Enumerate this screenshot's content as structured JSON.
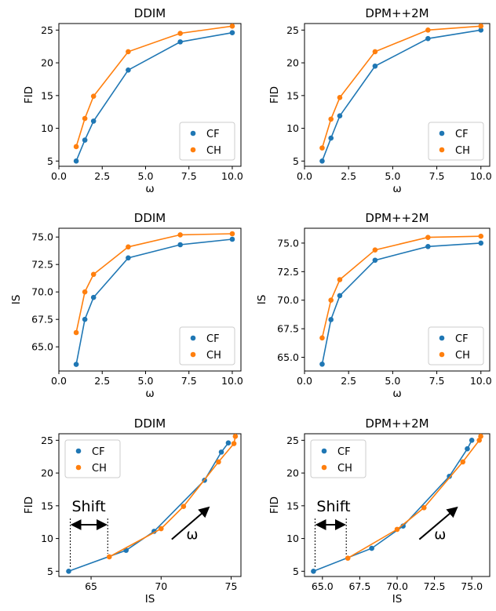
{
  "colors": {
    "CF": "#1f77b4",
    "CH": "#ff7f0e"
  },
  "chart_data": [
    {
      "type": "line",
      "title": "DDIM",
      "xlabel": "ω",
      "ylabel": "FID",
      "xlim": [
        0,
        10.5
      ],
      "ylim": [
        4.2,
        26
      ],
      "xticks": [
        "0.0",
        "2.5",
        "5.0",
        "7.5",
        "10.0"
      ],
      "xtick_values": [
        0,
        2.5,
        5,
        7.5,
        10
      ],
      "yticks": [
        "5",
        "10",
        "15",
        "20",
        "25"
      ],
      "ytick_values": [
        5,
        10,
        15,
        20,
        25
      ],
      "legend": "lower-right",
      "series": [
        {
          "name": "CF",
          "x": [
            1,
            1.5,
            2,
            4,
            7,
            10
          ],
          "y": [
            5.0,
            8.2,
            11.1,
            18.9,
            23.2,
            24.6
          ]
        },
        {
          "name": "CH",
          "x": [
            1,
            1.5,
            2,
            4,
            7,
            10
          ],
          "y": [
            7.2,
            11.5,
            14.9,
            21.7,
            24.5,
            25.6
          ]
        }
      ]
    },
    {
      "type": "line",
      "title": "DPM++2M",
      "xlabel": "ω",
      "ylabel": "FID",
      "xlim": [
        0,
        10.5
      ],
      "ylim": [
        4.2,
        26
      ],
      "xticks": [
        "0.0",
        "2.5",
        "5.0",
        "7.5",
        "10.0"
      ],
      "xtick_values": [
        0,
        2.5,
        5,
        7.5,
        10
      ],
      "yticks": [
        "5",
        "10",
        "15",
        "20",
        "25"
      ],
      "ytick_values": [
        5,
        10,
        15,
        20,
        25
      ],
      "legend": "lower-right",
      "series": [
        {
          "name": "CF",
          "x": [
            1,
            1.5,
            2,
            4,
            7,
            10
          ],
          "y": [
            5.0,
            8.5,
            11.9,
            19.5,
            23.7,
            25.0
          ]
        },
        {
          "name": "CH",
          "x": [
            1,
            1.5,
            2,
            4,
            7,
            10
          ],
          "y": [
            7.0,
            11.4,
            14.7,
            21.7,
            25.0,
            25.6
          ]
        }
      ]
    },
    {
      "type": "line",
      "title": "DDIM",
      "xlabel": "ω",
      "ylabel": "IS",
      "xlim": [
        0,
        10.5
      ],
      "ylim": [
        62.8,
        75.8
      ],
      "xticks": [
        "0.0",
        "2.5",
        "5.0",
        "7.5",
        "10.0"
      ],
      "xtick_values": [
        0,
        2.5,
        5,
        7.5,
        10
      ],
      "yticks": [
        "65.0",
        "67.5",
        "70.0",
        "72.5",
        "75.0"
      ],
      "ytick_values": [
        65,
        67.5,
        70,
        72.5,
        75
      ],
      "legend": "lower-right",
      "series": [
        {
          "name": "CF",
          "x": [
            1,
            1.5,
            2,
            4,
            7,
            10
          ],
          "y": [
            63.4,
            67.5,
            69.5,
            73.1,
            74.3,
            74.8
          ]
        },
        {
          "name": "CH",
          "x": [
            1,
            1.5,
            2,
            4,
            7,
            10
          ],
          "y": [
            66.3,
            70.0,
            71.6,
            74.1,
            75.2,
            75.3
          ]
        }
      ]
    },
    {
      "type": "line",
      "title": "DPM++2M",
      "xlabel": "ω",
      "ylabel": "IS",
      "xlim": [
        0,
        10.5
      ],
      "ylim": [
        63.8,
        76.3
      ],
      "xticks": [
        "0.0",
        "2.5",
        "5.0",
        "7.5",
        "10.0"
      ],
      "xtick_values": [
        0,
        2.5,
        5,
        7.5,
        10
      ],
      "yticks": [
        "65.0",
        "67.5",
        "70.0",
        "72.5",
        "75.0"
      ],
      "ytick_values": [
        65,
        67.5,
        70,
        72.5,
        75
      ],
      "legend": "lower-right",
      "series": [
        {
          "name": "CF",
          "x": [
            1,
            1.5,
            2,
            4,
            7,
            10
          ],
          "y": [
            64.4,
            68.3,
            70.4,
            73.5,
            74.7,
            75.0
          ]
        },
        {
          "name": "CH",
          "x": [
            1,
            1.5,
            2,
            4,
            7,
            10
          ],
          "y": [
            66.7,
            70.0,
            71.8,
            74.4,
            75.5,
            75.6
          ]
        }
      ]
    },
    {
      "type": "line",
      "title": "DDIM",
      "xlabel": "IS",
      "ylabel": "FID",
      "xlim": [
        62.7,
        75.7
      ],
      "ylim": [
        4.2,
        26
      ],
      "xticks": [
        "65",
        "70",
        "75"
      ],
      "xtick_values": [
        65,
        70,
        75
      ],
      "yticks": [
        "5",
        "10",
        "15",
        "20",
        "25"
      ],
      "ytick_values": [
        5,
        10,
        15,
        20,
        25
      ],
      "legend": "upper-left",
      "annotations": {
        "shift": "Shift",
        "omega": "ω"
      },
      "series": [
        {
          "name": "CF",
          "x": [
            63.4,
            67.5,
            69.5,
            73.1,
            74.3,
            74.8
          ],
          "y": [
            5.0,
            8.2,
            11.1,
            18.9,
            23.2,
            24.6
          ]
        },
        {
          "name": "CH",
          "x": [
            66.3,
            70.0,
            71.6,
            74.1,
            75.2,
            75.3
          ],
          "y": [
            7.2,
            11.5,
            14.9,
            21.7,
            24.5,
            25.6
          ]
        }
      ]
    },
    {
      "type": "line",
      "title": "DPM++2M",
      "xlabel": "IS",
      "ylabel": "FID",
      "xlim": [
        63.8,
        76.2
      ],
      "ylim": [
        4.2,
        26
      ],
      "xticks": [
        "65.0",
        "67.5",
        "70.0",
        "72.5",
        "75.0"
      ],
      "xtick_values": [
        65,
        67.5,
        70,
        72.5,
        75
      ],
      "yticks": [
        "5",
        "10",
        "15",
        "20",
        "25"
      ],
      "ytick_values": [
        5,
        10,
        15,
        20,
        25
      ],
      "legend": "upper-left",
      "annotations": {
        "shift": "Shift",
        "omega": "ω"
      },
      "series": [
        {
          "name": "CF",
          "x": [
            64.4,
            68.3,
            70.4,
            73.5,
            74.7,
            75.0
          ],
          "y": [
            5.0,
            8.5,
            11.9,
            19.5,
            23.7,
            25.0
          ]
        },
        {
          "name": "CH",
          "x": [
            66.7,
            70.0,
            71.8,
            74.4,
            75.5,
            75.6
          ],
          "y": [
            7.0,
            11.4,
            14.7,
            21.7,
            25.0,
            25.6
          ]
        }
      ]
    }
  ]
}
